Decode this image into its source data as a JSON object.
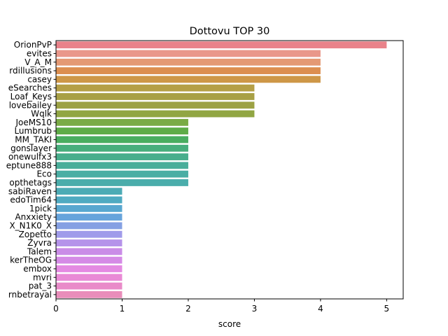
{
  "chart_data": {
    "type": "bar",
    "orientation": "horizontal",
    "title": "Dottovu TOP 30",
    "xlabel": "score",
    "ylabel": "",
    "xlim": [
      0,
      5.25
    ],
    "xticks": [
      0,
      1,
      2,
      3,
      4,
      5
    ],
    "grid": false,
    "legend": "none",
    "categories": [
      "OrionPvP",
      "evites",
      "V_A_M",
      "rdillusions",
      "casey",
      "eSearches",
      "Loaf_Keys",
      "lovebailey",
      "Wqlk",
      "JoeMS10",
      "Lumbrub",
      "MM_TAKI",
      "gonslayer",
      "onewulfx3",
      "eptune888",
      "Eco",
      "opthetags",
      "sabiRaven",
      "edoTim64",
      "1pick",
      "Anxxiety",
      "X_N1K0_X",
      "Zopetto",
      "Zyvra",
      "Talem",
      "kerTheOG",
      "embox",
      "mvri",
      "pat_3",
      "rnbetrayal"
    ],
    "values": [
      5,
      4,
      4,
      4,
      4,
      3,
      3,
      3,
      3,
      2,
      2,
      2,
      2,
      2,
      2,
      2,
      2,
      1,
      1,
      1,
      1,
      1,
      1,
      1,
      1,
      1,
      1,
      1,
      1,
      1
    ],
    "colors": [
      "#e9828a",
      "#e9978a",
      "#e49974",
      "#dc8e4f",
      "#ce9747",
      "#b59f46",
      "#a8a045",
      "#9da244",
      "#91a643",
      "#7aab45",
      "#5eac47",
      "#49ad5f",
      "#47ae7c",
      "#48ae8c",
      "#49ae9a",
      "#4aaea4",
      "#4aadab",
      "#4cabb5",
      "#4faac1",
      "#58a7d0",
      "#67a4dc",
      "#85a0e3",
      "#a09bea",
      "#b593ea",
      "#ca8ce7",
      "#d58ae6",
      "#e48ae2",
      "#e98ad6",
      "#e98bc9",
      "#e98dba"
    ]
  }
}
